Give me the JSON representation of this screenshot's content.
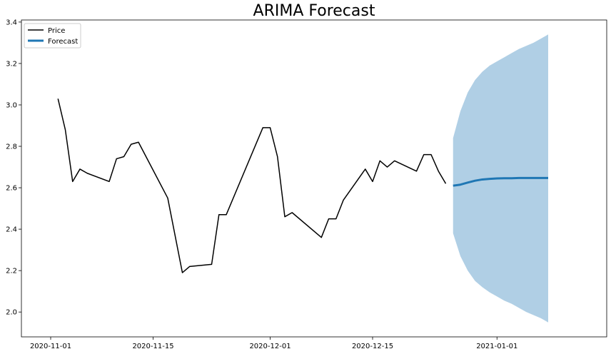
{
  "chart_data": {
    "type": "line",
    "title": "ARIMA Forecast",
    "xlabel": "",
    "ylabel": "",
    "xlim": [
      "2020-10-28",
      "2021-01-16"
    ],
    "ylim": [
      1.88,
      3.41
    ],
    "x_ticks": [
      "2020-11-01",
      "2020-11-15",
      "2020-12-01",
      "2020-12-15",
      "2021-01-01"
    ],
    "y_ticks": [
      2.0,
      2.2,
      2.4,
      2.6,
      2.8,
      3.0,
      3.2,
      3.4
    ],
    "y_tick_labels": [
      "2.0",
      "2.2",
      "2.4",
      "2.6",
      "2.8",
      "3.0",
      "3.2",
      "3.4"
    ],
    "grid": false,
    "legend_position": "top-left",
    "legend": [
      "Price",
      "Forecast"
    ],
    "colors": {
      "price": "#000000",
      "forecast": "#1f77b4",
      "interval": "#b0cfe5"
    },
    "series": [
      {
        "name": "Price",
        "points": [
          {
            "x": "2020-11-02",
            "y": 3.03
          },
          {
            "x": "2020-11-03",
            "y": 2.88
          },
          {
            "x": "2020-11-04",
            "y": 2.63
          },
          {
            "x": "2020-11-05",
            "y": 2.69
          },
          {
            "x": "2020-11-06",
            "y": 2.67
          },
          {
            "x": "2020-11-09",
            "y": 2.63
          },
          {
            "x": "2020-11-10",
            "y": 2.74
          },
          {
            "x": "2020-11-11",
            "y": 2.75
          },
          {
            "x": "2020-11-12",
            "y": 2.81
          },
          {
            "x": "2020-11-13",
            "y": 2.82
          },
          {
            "x": "2020-11-17",
            "y": 2.55
          },
          {
            "x": "2020-11-19",
            "y": 2.19
          },
          {
            "x": "2020-11-20",
            "y": 2.22
          },
          {
            "x": "2020-11-23",
            "y": 2.23
          },
          {
            "x": "2020-11-24",
            "y": 2.47
          },
          {
            "x": "2020-11-25",
            "y": 2.47
          },
          {
            "x": "2020-11-30",
            "y": 2.89
          },
          {
            "x": "2020-12-01",
            "y": 2.89
          },
          {
            "x": "2020-12-02",
            "y": 2.75
          },
          {
            "x": "2020-12-03",
            "y": 2.46
          },
          {
            "x": "2020-12-04",
            "y": 2.48
          },
          {
            "x": "2020-12-08",
            "y": 2.36
          },
          {
            "x": "2020-12-09",
            "y": 2.45
          },
          {
            "x": "2020-12-10",
            "y": 2.45
          },
          {
            "x": "2020-12-11",
            "y": 2.54
          },
          {
            "x": "2020-12-14",
            "y": 2.69
          },
          {
            "x": "2020-12-15",
            "y": 2.63
          },
          {
            "x": "2020-12-16",
            "y": 2.73
          },
          {
            "x": "2020-12-17",
            "y": 2.7
          },
          {
            "x": "2020-12-18",
            "y": 2.73
          },
          {
            "x": "2020-12-21",
            "y": 2.68
          },
          {
            "x": "2020-12-22",
            "y": 2.76
          },
          {
            "x": "2020-12-23",
            "y": 2.76
          },
          {
            "x": "2020-12-24",
            "y": 2.68
          },
          {
            "x": "2020-12-25",
            "y": 2.62
          }
        ]
      },
      {
        "name": "Forecast",
        "points": [
          {
            "x": "2020-12-26",
            "y": 2.61,
            "lower": 2.38,
            "upper": 2.84
          },
          {
            "x": "2020-12-27",
            "y": 2.615,
            "lower": 2.27,
            "upper": 2.97
          },
          {
            "x": "2020-12-28",
            "y": 2.625,
            "lower": 2.2,
            "upper": 3.06
          },
          {
            "x": "2020-12-29",
            "y": 2.634,
            "lower": 2.15,
            "upper": 3.12
          },
          {
            "x": "2020-12-30",
            "y": 2.64,
            "lower": 2.12,
            "upper": 3.16
          },
          {
            "x": "2020-12-31",
            "y": 2.643,
            "lower": 2.095,
            "upper": 3.19
          },
          {
            "x": "2021-01-01",
            "y": 2.645,
            "lower": 2.075,
            "upper": 3.21
          },
          {
            "x": "2021-01-02",
            "y": 2.646,
            "lower": 2.055,
            "upper": 3.23
          },
          {
            "x": "2021-01-03",
            "y": 2.646,
            "lower": 2.04,
            "upper": 3.25
          },
          {
            "x": "2021-01-04",
            "y": 2.647,
            "lower": 2.02,
            "upper": 3.27
          },
          {
            "x": "2021-01-05",
            "y": 2.647,
            "lower": 2.0,
            "upper": 3.285
          },
          {
            "x": "2021-01-06",
            "y": 2.647,
            "lower": 1.985,
            "upper": 3.3
          },
          {
            "x": "2021-01-07",
            "y": 2.647,
            "lower": 1.97,
            "upper": 3.32
          },
          {
            "x": "2021-01-08",
            "y": 2.647,
            "lower": 1.95,
            "upper": 3.34
          }
        ]
      }
    ]
  }
}
